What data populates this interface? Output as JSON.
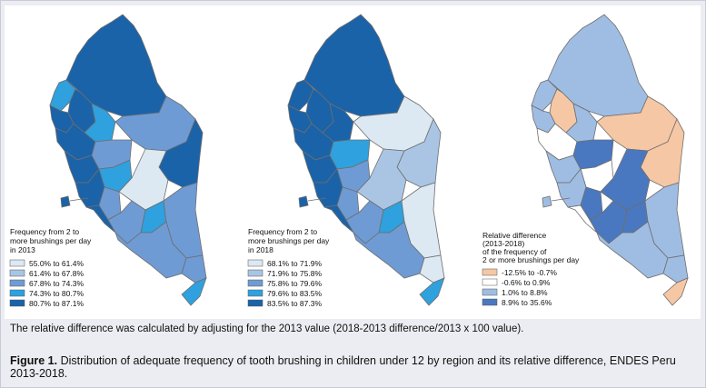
{
  "colors": {
    "blue_1": "#dce8f2",
    "blue_2": "#a9c5e3",
    "blue_3": "#6f9bd5",
    "blue_4": "#2ea1de",
    "blue_5": "#1b63a8",
    "diff_neg": "#f6c7a4",
    "diff_zero": "#ffffff",
    "diff_low": "#9fbde3",
    "diff_high": "#4a78c0"
  },
  "map_2013": {
    "legend_title": [
      "Frequency from 2 to",
      "more brushings per day",
      "in 2013"
    ],
    "legend": [
      {
        "label": "55.0% to 61.4%",
        "color": "#dce8f2"
      },
      {
        "label": "61.4% to 67.8%",
        "color": "#a9c5e3"
      },
      {
        "label": "67.8% to 74.3%",
        "color": "#6f9bd5"
      },
      {
        "label": "74.3% to 80.7%",
        "color": "#2ea1de"
      },
      {
        "label": "80.7% to 87.1%",
        "color": "#1b63a8"
      }
    ]
  },
  "map_2018": {
    "legend_title": [
      "Frequency from 2 to",
      "more brushings per day",
      "in 2018"
    ],
    "legend": [
      {
        "label": "68.1% to 71.9%",
        "color": "#dce8f2"
      },
      {
        "label": "71.9% to 75.8%",
        "color": "#a9c5e3"
      },
      {
        "label": "75.8% to 79.6%",
        "color": "#6f9bd5"
      },
      {
        "label": "79.6% to 83.5%",
        "color": "#2ea1de"
      },
      {
        "label": "83.5% to 87.3%",
        "color": "#1b63a8"
      }
    ]
  },
  "map_diff": {
    "legend_title": [
      "Relative difference",
      "(2013-2018)",
      "of the frequency of",
      "2 or more brushings per day"
    ],
    "legend": [
      {
        "label": "-12.5% to -0.7%",
        "color": "#f6c7a4"
      },
      {
        "label": "-0.6% to 0.9%",
        "color": "#ffffff"
      },
      {
        "label": "1.0% to 8.8%",
        "color": "#9fbde3"
      },
      {
        "label": "8.9% to 35.6%",
        "color": "#4a78c0"
      }
    ]
  },
  "note": "The relative difference was calculated by adjusting for the 2013 value (2018-2013 difference/2013 x 100 value).",
  "caption": {
    "label": "Figure 1.",
    "text": " Distribution of adequate frequency of tooth brushing in children under 12 by region and its relative difference, ENDES Peru 2013-2018."
  }
}
